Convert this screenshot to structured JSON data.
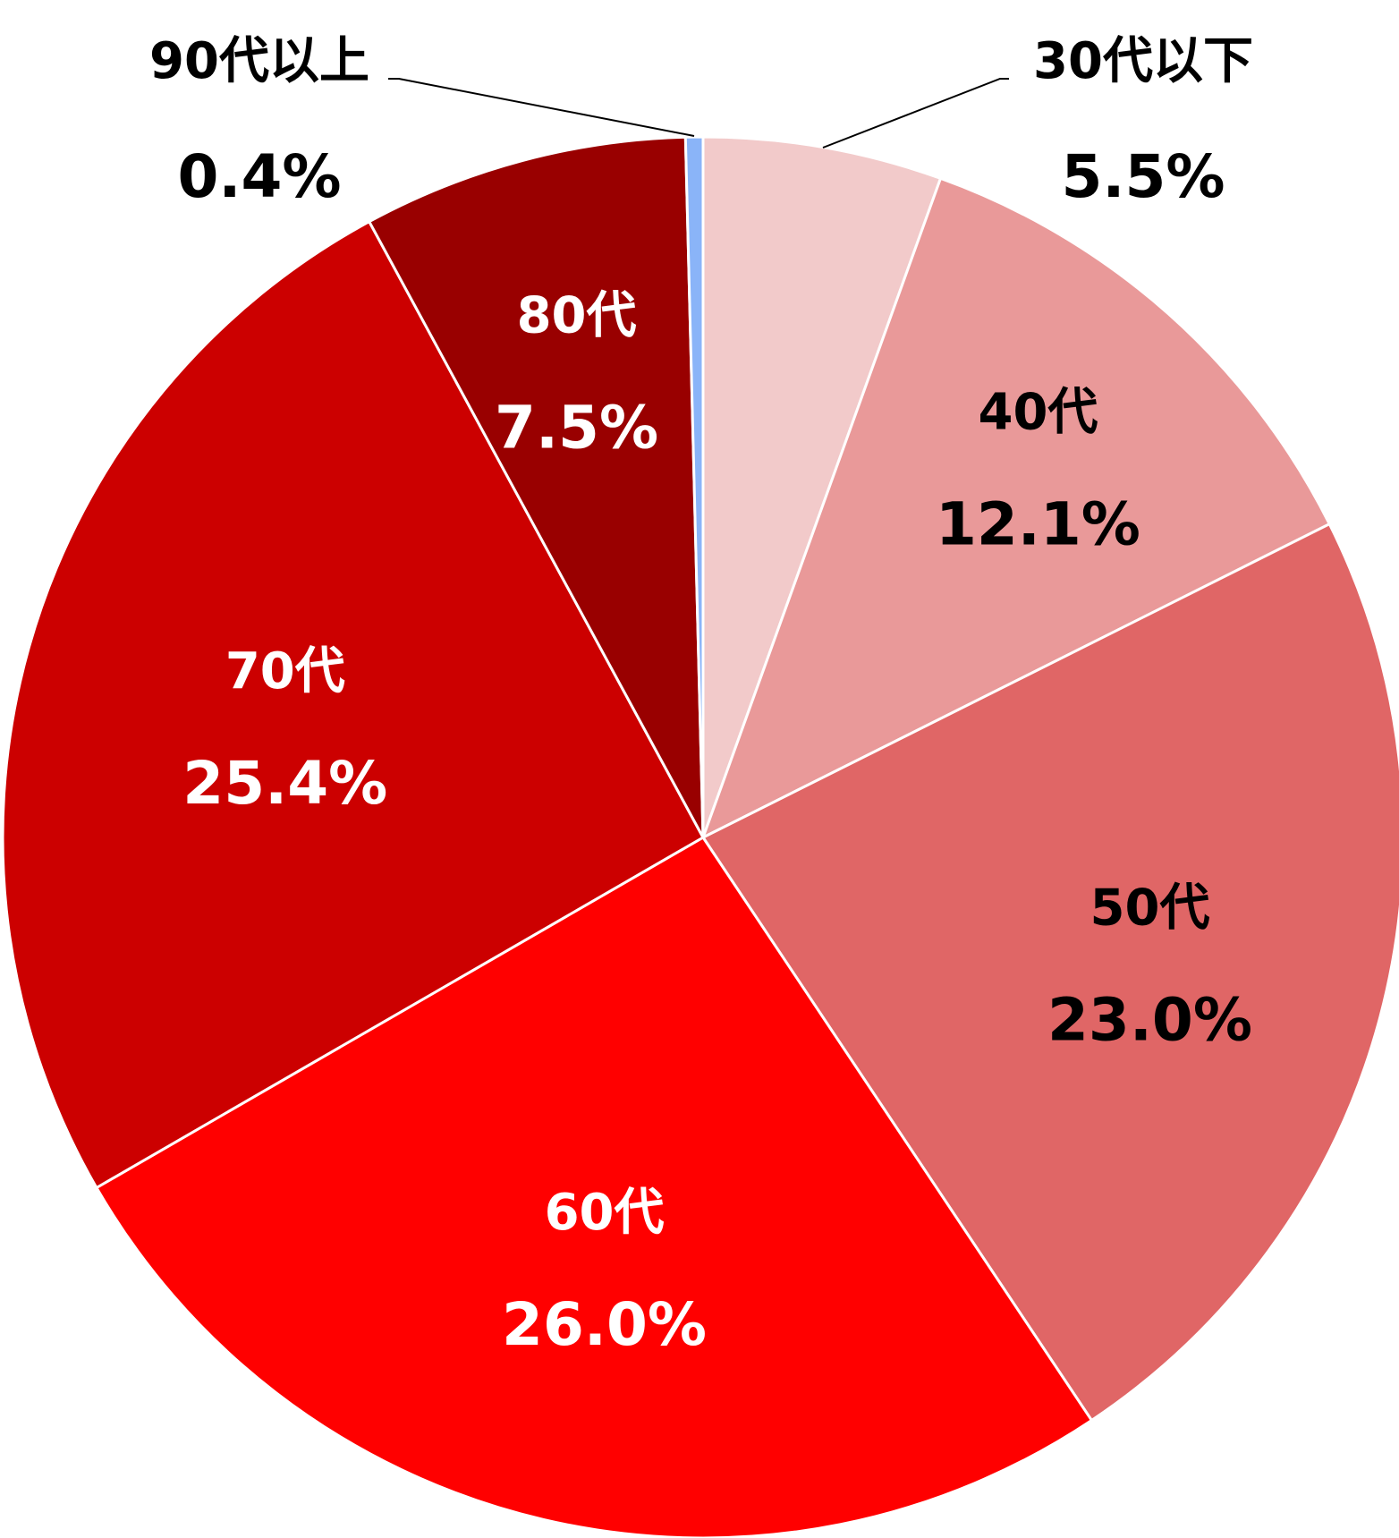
{
  "chart_data": {
    "type": "pie",
    "title": "",
    "categories": [
      "30代以下",
      "40代",
      "50代",
      "60代",
      "70代",
      "80代",
      "90代以上"
    ],
    "values": [
      5.5,
      12.1,
      23.0,
      26.0,
      25.4,
      7.5,
      0.4
    ],
    "value_labels": [
      "5.5%",
      "12.1%",
      "23.0%",
      "26.0%",
      "25.4%",
      "7.5%",
      "0.4%"
    ],
    "colors": [
      "#F2CACA",
      "#E99999",
      "#E06666",
      "#FF0000",
      "#CC0000",
      "#990000",
      "#8AB4F8"
    ],
    "label_colors": [
      "#000000",
      "#000000",
      "#000000",
      "#ffffff",
      "#ffffff",
      "#ffffff",
      "#000000"
    ],
    "slice_border_color": "#ffffff",
    "leader_line_color": "#000000",
    "start_angle": "12 o'clock",
    "direction": "clockwise",
    "legend": "none"
  }
}
